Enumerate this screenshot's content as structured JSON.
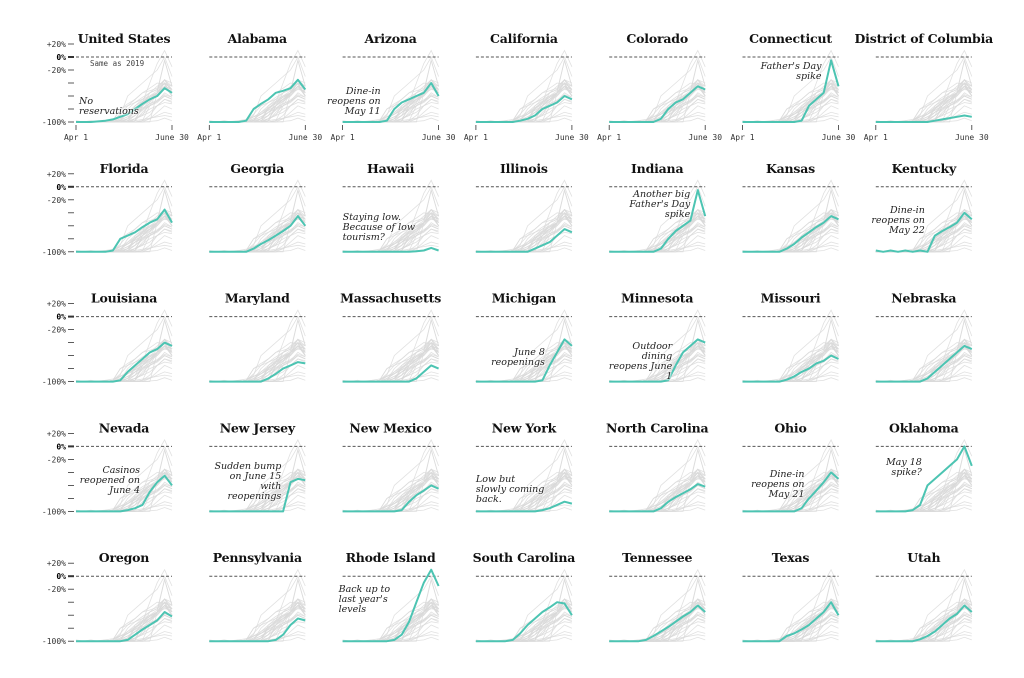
{
  "chart_data": {
    "type": "line",
    "layout": "small-multiples",
    "x_labels": [
      "Apr 1",
      "June 30"
    ],
    "x_range": [
      "Apr 1",
      "June 30"
    ],
    "y_range": [
      -100,
      20
    ],
    "y_ticks": [
      20,
      0,
      -20,
      -40,
      -60,
      -80,
      -100
    ],
    "y_tick_labels": {
      "20": "+20%",
      "0": "0%",
      "-20": "-20%",
      "-100": "-100%"
    },
    "baseline_label": "Same as 2019",
    "highlight_color": "#4cc4b2",
    "background_series_color": "#d9d9d9",
    "baseline_color": "#555555",
    "states": [
      {
        "name": "United States",
        "values": [
          -100,
          -100,
          -100,
          -99,
          -98,
          -96,
          -92,
          -88,
          -80,
          -72,
          -65,
          -60,
          -48,
          -55
        ],
        "note": [
          "No",
          "reservations"
        ]
      },
      {
        "name": "Alabama",
        "values": [
          -100,
          -100,
          -100,
          -100,
          -100,
          -98,
          -80,
          -72,
          -65,
          -55,
          -52,
          -48,
          -35,
          -50
        ]
      },
      {
        "name": "Arizona",
        "values": [
          -100,
          -100,
          -100,
          -100,
          -100,
          -100,
          -98,
          -80,
          -70,
          -65,
          -60,
          -55,
          -40,
          -60
        ],
        "note": [
          "Dine-in",
          "reopens on",
          "May 11"
        ]
      },
      {
        "name": "California",
        "values": [
          -100,
          -100,
          -100,
          -100,
          -100,
          -100,
          -98,
          -95,
          -90,
          -80,
          -75,
          -70,
          -60,
          -65
        ]
      },
      {
        "name": "Colorado",
        "values": [
          -100,
          -100,
          -100,
          -100,
          -100,
          -100,
          -100,
          -95,
          -80,
          -70,
          -65,
          -55,
          -45,
          -50
        ]
      },
      {
        "name": "Connecticut",
        "values": [
          -100,
          -100,
          -100,
          -100,
          -100,
          -100,
          -100,
          -100,
          -98,
          -75,
          -65,
          -55,
          -5,
          -45
        ],
        "note": [
          "Father's Day",
          "spike"
        ]
      },
      {
        "name": "District of Columbia",
        "values": [
          -100,
          -100,
          -100,
          -100,
          -100,
          -100,
          -100,
          -100,
          -98,
          -96,
          -94,
          -92,
          -90,
          -92
        ]
      },
      {
        "name": "Florida",
        "values": [
          -100,
          -100,
          -100,
          -100,
          -100,
          -98,
          -80,
          -75,
          -70,
          -62,
          -55,
          -50,
          -35,
          -55
        ]
      },
      {
        "name": "Georgia",
        "values": [
          -100,
          -100,
          -100,
          -100,
          -100,
          -100,
          -95,
          -88,
          -82,
          -75,
          -68,
          -60,
          -45,
          -60
        ]
      },
      {
        "name": "Hawaii",
        "values": [
          -100,
          -100,
          -100,
          -100,
          -100,
          -100,
          -100,
          -100,
          -100,
          -100,
          -99,
          -98,
          -94,
          -98
        ],
        "note": [
          "Staying low.",
          "Because of low",
          "tourism?"
        ]
      },
      {
        "name": "Illinois",
        "values": [
          -100,
          -100,
          -100,
          -100,
          -100,
          -100,
          -100,
          -100,
          -95,
          -90,
          -85,
          -75,
          -65,
          -70
        ]
      },
      {
        "name": "Indiana",
        "values": [
          -100,
          -100,
          -100,
          -100,
          -100,
          -100,
          -100,
          -95,
          -80,
          -68,
          -60,
          -52,
          -5,
          -45
        ],
        "note": [
          "Another big",
          "Father's Day",
          "spike"
        ]
      },
      {
        "name": "Kansas",
        "values": [
          -100,
          -100,
          -100,
          -100,
          -100,
          -100,
          -95,
          -88,
          -78,
          -70,
          -62,
          -55,
          -45,
          -50
        ]
      },
      {
        "name": "Kentucky",
        "values": [
          -98,
          -100,
          -98,
          -100,
          -98,
          -100,
          -98,
          -100,
          -75,
          -68,
          -62,
          -55,
          -40,
          -50
        ],
        "note": [
          "Dine-in",
          "reopens on",
          "May 22"
        ]
      },
      {
        "name": "Louisiana",
        "values": [
          -100,
          -100,
          -100,
          -100,
          -100,
          -100,
          -98,
          -85,
          -75,
          -65,
          -55,
          -50,
          -40,
          -45
        ]
      },
      {
        "name": "Maryland",
        "values": [
          -100,
          -100,
          -100,
          -100,
          -100,
          -100,
          -100,
          -100,
          -95,
          -88,
          -80,
          -75,
          -70,
          -72
        ]
      },
      {
        "name": "Massachusetts",
        "values": [
          -100,
          -100,
          -100,
          -100,
          -100,
          -100,
          -100,
          -100,
          -100,
          -100,
          -95,
          -85,
          -75,
          -80
        ]
      },
      {
        "name": "Michigan",
        "values": [
          -100,
          -100,
          -100,
          -100,
          -100,
          -100,
          -100,
          -100,
          -100,
          -98,
          -75,
          -55,
          -35,
          -45
        ],
        "note": [
          "June 8",
          "reopenings"
        ]
      },
      {
        "name": "Minnesota",
        "values": [
          -100,
          -100,
          -100,
          -100,
          -100,
          -100,
          -100,
          -100,
          -98,
          -75,
          -55,
          -45,
          -35,
          -40
        ],
        "note": [
          "Outdoor",
          "dining",
          "reopens June",
          "1"
        ]
      },
      {
        "name": "Missouri",
        "values": [
          -100,
          -100,
          -100,
          -100,
          -100,
          -100,
          -97,
          -92,
          -85,
          -80,
          -72,
          -68,
          -60,
          -65
        ]
      },
      {
        "name": "Nebraska",
        "values": [
          -100,
          -100,
          -100,
          -100,
          -100,
          -100,
          -100,
          -95,
          -85,
          -75,
          -65,
          -55,
          -45,
          -50
        ]
      },
      {
        "name": "Nevada",
        "values": [
          -100,
          -100,
          -100,
          -100,
          -100,
          -100,
          -100,
          -98,
          -95,
          -90,
          -70,
          -55,
          -45,
          -60
        ],
        "note": [
          "Casinos",
          "reopened on",
          "June 4"
        ]
      },
      {
        "name": "New Jersey",
        "values": [
          -100,
          -100,
          -100,
          -100,
          -100,
          -100,
          -100,
          -100,
          -100,
          -100,
          -100,
          -55,
          -50,
          -52
        ],
        "note": [
          "Sudden bump",
          "on June 15",
          "with",
          "reopenings"
        ]
      },
      {
        "name": "New Mexico",
        "values": [
          -100,
          -100,
          -100,
          -100,
          -100,
          -100,
          -100,
          -100,
          -98,
          -85,
          -75,
          -68,
          -60,
          -65
        ]
      },
      {
        "name": "New York",
        "values": [
          -100,
          -100,
          -100,
          -100,
          -100,
          -100,
          -100,
          -100,
          -100,
          -98,
          -95,
          -90,
          -85,
          -88
        ],
        "note": [
          "Low but",
          "slowly coming",
          "back."
        ]
      },
      {
        "name": "North Carolina",
        "values": [
          -100,
          -100,
          -100,
          -100,
          -100,
          -100,
          -100,
          -95,
          -85,
          -78,
          -72,
          -66,
          -58,
          -62
        ]
      },
      {
        "name": "Ohio",
        "values": [
          -100,
          -100,
          -100,
          -100,
          -100,
          -100,
          -100,
          -100,
          -95,
          -80,
          -68,
          -55,
          -40,
          -50
        ],
        "note": [
          "Dine-in",
          "reopens on",
          "May 21"
        ]
      },
      {
        "name": "Oklahoma",
        "values": [
          -100,
          -100,
          -100,
          -100,
          -100,
          -98,
          -90,
          -60,
          -50,
          -40,
          -30,
          -20,
          0,
          -30
        ],
        "note": [
          "May 18",
          "spike?"
        ]
      },
      {
        "name": "Oregon",
        "values": [
          -100,
          -100,
          -100,
          -100,
          -100,
          -100,
          -100,
          -98,
          -90,
          -82,
          -75,
          -68,
          -55,
          -62
        ]
      },
      {
        "name": "Pennsylvania",
        "values": [
          -100,
          -100,
          -100,
          -100,
          -100,
          -100,
          -100,
          -100,
          -100,
          -98,
          -90,
          -75,
          -65,
          -68
        ]
      },
      {
        "name": "Rhode Island",
        "values": [
          -100,
          -100,
          -100,
          -100,
          -100,
          -100,
          -100,
          -98,
          -90,
          -70,
          -40,
          -10,
          10,
          -15
        ],
        "note": [
          "Back up to",
          "last year's",
          "levels"
        ]
      },
      {
        "name": "South Carolina",
        "values": [
          -100,
          -100,
          -100,
          -100,
          -100,
          -98,
          -88,
          -75,
          -65,
          -55,
          -48,
          -40,
          -42,
          -60
        ]
      },
      {
        "name": "Tennessee",
        "values": [
          -100,
          -100,
          -100,
          -100,
          -100,
          -98,
          -92,
          -85,
          -78,
          -70,
          -62,
          -55,
          -45,
          -55
        ]
      },
      {
        "name": "Texas",
        "values": [
          -100,
          -100,
          -100,
          -100,
          -100,
          -100,
          -92,
          -88,
          -82,
          -75,
          -65,
          -55,
          -40,
          -60
        ]
      },
      {
        "name": "Utah",
        "values": [
          -100,
          -100,
          -100,
          -100,
          -100,
          -100,
          -97,
          -92,
          -85,
          -75,
          -65,
          -58,
          -45,
          -55
        ]
      }
    ]
  }
}
